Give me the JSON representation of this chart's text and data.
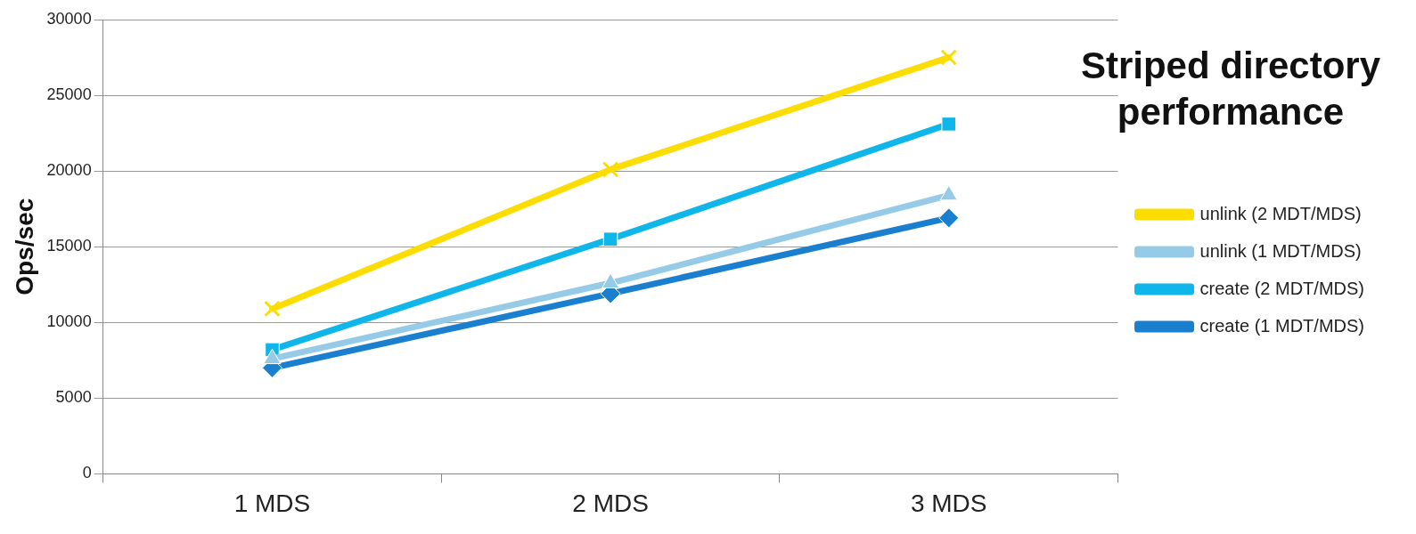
{
  "chart_data": {
    "type": "line",
    "title": "Striped directory performance",
    "ylabel": "Ops/sec",
    "categories": [
      "1 MDS",
      "2 MDS",
      "3 MDS"
    ],
    "series": [
      {
        "name": "create (1 MDT/MDS)",
        "color": "#1a7fcf",
        "marker": "diamond",
        "values": [
          7000,
          11900,
          16900
        ]
      },
      {
        "name": "create (2 MDT/MDS)",
        "color": "#0fb6ea",
        "marker": "square",
        "values": [
          8200,
          15500,
          23100
        ]
      },
      {
        "name": "unlink (1 MDT/MDS)",
        "color": "#96cbe8",
        "marker": "triangle",
        "values": [
          7600,
          12600,
          18400
        ]
      },
      {
        "name": "unlink (2 MDT/MDS)",
        "color": "#fddc00",
        "marker": "cross",
        "values": [
          10900,
          20100,
          27500
        ]
      }
    ],
    "ylim": [
      0,
      30000
    ],
    "yticks": [
      0,
      5000,
      10000,
      15000,
      20000,
      25000,
      30000
    ],
    "grid": "y",
    "legend": "right",
    "line_style": "solid"
  }
}
